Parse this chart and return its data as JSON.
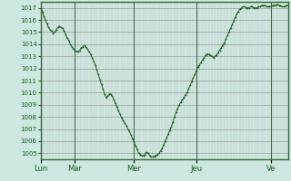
{
  "bg_color": "#cce8e0",
  "line_color": "#1a5c1a",
  "marker_color": "#1a5c1a",
  "ylim": [
    1004.5,
    1017.5
  ],
  "yticks": [
    1005,
    1006,
    1007,
    1008,
    1009,
    1010,
    1011,
    1012,
    1013,
    1014,
    1015,
    1016,
    1017
  ],
  "day_labels": [
    "Lun",
    "Mar",
    "Mer",
    "Jeu",
    "Ve"
  ],
  "num_points": 160,
  "pressure_data": [
    1017.0,
    1016.7,
    1016.3,
    1016.0,
    1015.7,
    1015.4,
    1015.2,
    1015.1,
    1014.9,
    1015.0,
    1015.2,
    1015.4,
    1015.5,
    1015.4,
    1015.3,
    1015.1,
    1014.8,
    1014.5,
    1014.3,
    1014.0,
    1013.8,
    1013.6,
    1013.5,
    1013.4,
    1013.4,
    1013.5,
    1013.7,
    1013.8,
    1013.9,
    1013.8,
    1013.6,
    1013.4,
    1013.2,
    1012.9,
    1012.6,
    1012.3,
    1011.9,
    1011.5,
    1011.1,
    1010.7,
    1010.3,
    1009.9,
    1009.6,
    1009.7,
    1009.9,
    1009.9,
    1009.7,
    1009.4,
    1009.1,
    1008.8,
    1008.5,
    1008.2,
    1007.9,
    1007.7,
    1007.5,
    1007.3,
    1007.0,
    1006.8,
    1006.5,
    1006.2,
    1005.9,
    1005.6,
    1005.3,
    1005.0,
    1004.9,
    1004.8,
    1004.8,
    1004.9,
    1005.1,
    1005.0,
    1004.8,
    1004.7,
    1004.7,
    1004.75,
    1004.8,
    1004.9,
    1005.0,
    1005.2,
    1005.4,
    1005.7,
    1006.0,
    1006.3,
    1006.6,
    1006.9,
    1007.2,
    1007.6,
    1008.0,
    1008.4,
    1008.7,
    1009.0,
    1009.2,
    1009.4,
    1009.6,
    1009.8,
    1010.0,
    1010.3,
    1010.6,
    1010.9,
    1011.2,
    1011.5,
    1011.8,
    1012.1,
    1012.3,
    1012.5,
    1012.7,
    1012.9,
    1013.1,
    1013.2,
    1013.2,
    1013.1,
    1013.0,
    1012.9,
    1013.0,
    1013.1,
    1013.3,
    1013.5,
    1013.7,
    1013.9,
    1014.1,
    1014.4,
    1014.7,
    1015.0,
    1015.3,
    1015.6,
    1015.9,
    1016.2,
    1016.5,
    1016.7,
    1016.9,
    1017.0,
    1017.1,
    1017.1,
    1017.0,
    1017.0,
    1017.0,
    1017.1,
    1017.1,
    1017.0,
    1017.0,
    1017.0,
    1017.1,
    1017.1,
    1017.2,
    1017.2,
    1017.2,
    1017.1,
    1017.1,
    1017.1,
    1017.1,
    1017.2,
    1017.2,
    1017.2,
    1017.3,
    1017.2,
    1017.2,
    1017.1,
    1017.1,
    1017.1,
    1017.2,
    1017.2
  ]
}
